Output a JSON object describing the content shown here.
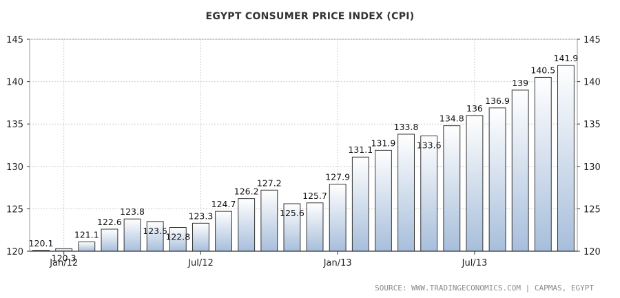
{
  "chart_data": {
    "type": "bar",
    "title": "EGYPT CONSUMER PRICE INDEX (CPI)",
    "xlabel": "",
    "ylabel": "",
    "ylim": [
      120,
      145
    ],
    "yticks": [
      120,
      125,
      130,
      135,
      140,
      145
    ],
    "xticks": [
      {
        "label": "Jan/12",
        "category": "2012-01"
      },
      {
        "label": "Jul/12",
        "category": "2012-07"
      },
      {
        "label": "Jan/13",
        "category": "2013-01"
      },
      {
        "label": "Jul/13",
        "category": "2013-07"
      }
    ],
    "categories": [
      "2011-12",
      "2012-01",
      "2012-02",
      "2012-03",
      "2012-04",
      "2012-05",
      "2012-06",
      "2012-07",
      "2012-08",
      "2012-09",
      "2012-10",
      "2012-11",
      "2012-12",
      "2013-01",
      "2013-02",
      "2013-03",
      "2013-04",
      "2013-05",
      "2013-06",
      "2013-07",
      "2013-08",
      "2013-09",
      "2013-10",
      "2013-11"
    ],
    "values": [
      120.1,
      120.3,
      121.1,
      122.6,
      123.8,
      123.5,
      122.8,
      123.3,
      124.7,
      126.2,
      127.2,
      125.6,
      125.7,
      127.9,
      131.1,
      131.9,
      133.8,
      133.6,
      134.8,
      136,
      136.9,
      139,
      140.5,
      141.9
    ],
    "labels": [
      "120.1",
      "120.3",
      "121.1",
      "122.6",
      "123.8",
      "123.5",
      "122.8",
      "123.3",
      "124.7",
      "126.2",
      "127.2",
      "125.6",
      "125.7",
      "127.9",
      "131.1",
      "131.9",
      "133.8",
      "133.6",
      "134.8",
      "136",
      "136.9",
      "139",
      "140.5",
      "141.9"
    ],
    "grid": true,
    "legend": "none",
    "colors": {
      "bar_top": "#ffffff",
      "bar_bottom": "#a7bedb",
      "bar_stroke": "#333333",
      "grid": "#cccccc"
    }
  },
  "source": "SOURCE:  WWW.TRADINGECONOMICS.COM  |  CAPMAS, EGYPT"
}
